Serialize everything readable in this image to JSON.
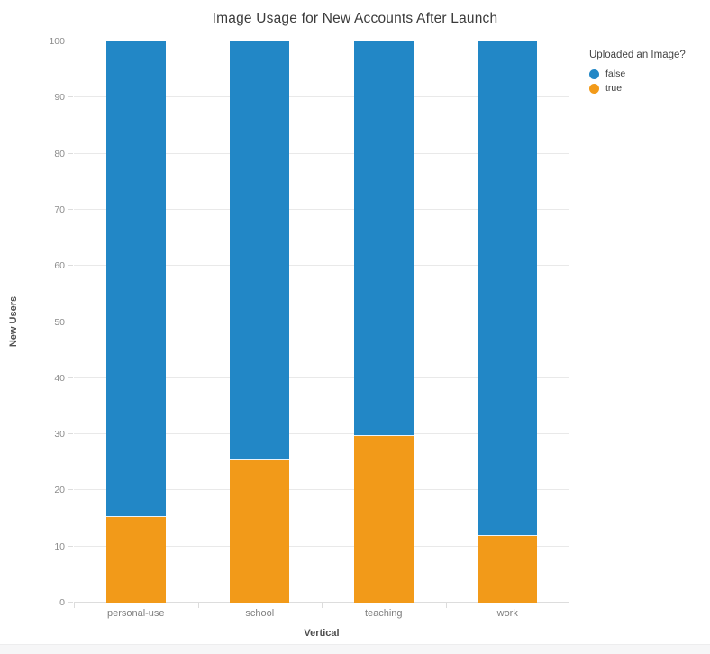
{
  "chart_data": {
    "type": "bar",
    "stacked": true,
    "normalized": true,
    "title": "Image Usage for New Accounts After Launch",
    "xlabel": "Vertical",
    "ylabel": "New Users",
    "categories": [
      "personal-use",
      "school",
      "teaching",
      "work"
    ],
    "series": [
      {
        "name": "false",
        "color": "#2287c6",
        "values": [
          84.8,
          74.7,
          70.3,
          88.1
        ]
      },
      {
        "name": "true",
        "color": "#f29a19",
        "values": [
          15.2,
          25.3,
          29.7,
          11.9
        ]
      }
    ],
    "stack_bottom_to_top": [
      "true",
      "false"
    ],
    "ylim": [
      0,
      100
    ],
    "yticks": [
      0,
      10,
      20,
      30,
      40,
      50,
      60,
      70,
      80,
      90,
      100
    ],
    "grid": true,
    "legend": {
      "title": "Uploaded an Image?",
      "position": "top-right",
      "entries": [
        {
          "label": "false",
          "color": "#2287c6"
        },
        {
          "label": "true",
          "color": "#f29a19"
        }
      ]
    },
    "colors": {
      "blue": "#2287c6",
      "orange": "#f29a19",
      "gridline": "#e9e9e9"
    }
  }
}
